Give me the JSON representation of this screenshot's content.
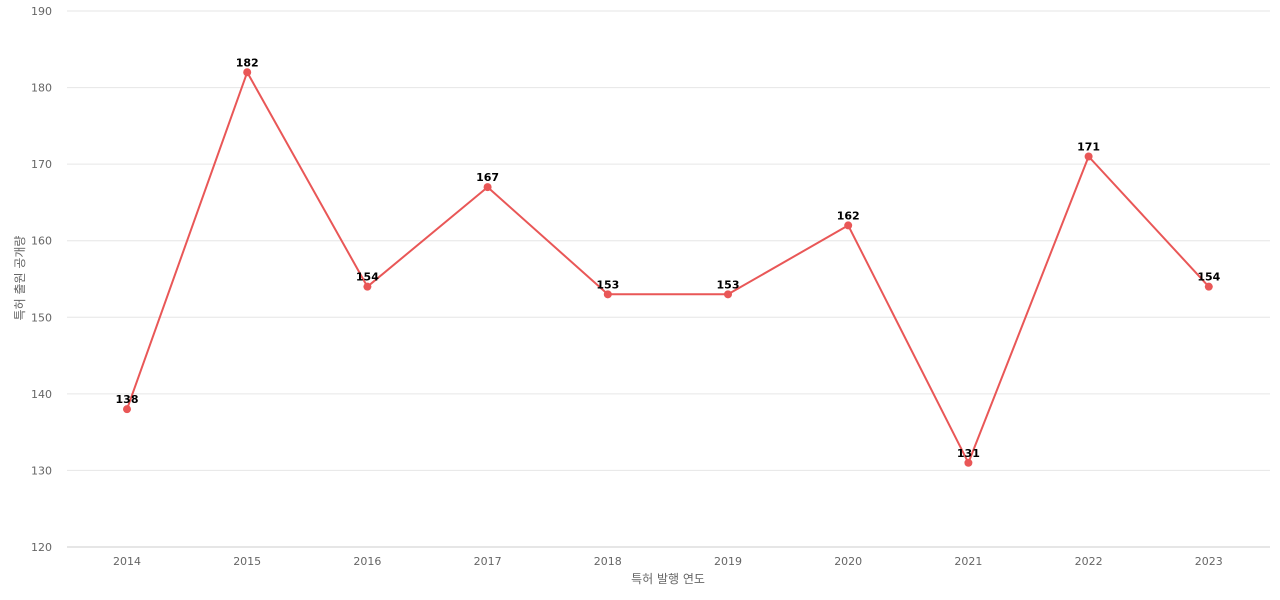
{
  "chart_data": {
    "type": "line",
    "title": "",
    "xlabel": "특허 발행 연도",
    "ylabel": "특허 출원 공개량",
    "categories": [
      "2014",
      "2015",
      "2016",
      "2017",
      "2018",
      "2019",
      "2020",
      "2021",
      "2022",
      "2023"
    ],
    "series": [
      {
        "values": [
          138,
          182,
          154,
          167,
          153,
          153,
          162,
          131,
          171,
          154
        ],
        "color": "#e95757"
      }
    ],
    "ylim": [
      120,
      190
    ],
    "yticks": [
      120,
      130,
      140,
      150,
      160,
      170,
      180,
      190
    ],
    "grid": true,
    "data_labels": true
  }
}
